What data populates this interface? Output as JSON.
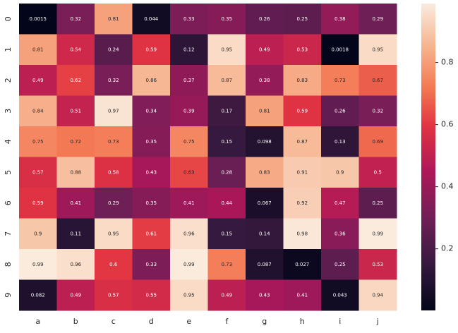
{
  "chart_data": {
    "type": "heatmap",
    "colormap": "rocket",
    "x_categories": [
      "a",
      "b",
      "c",
      "d",
      "e",
      "f",
      "g",
      "h",
      "i",
      "j"
    ],
    "y_categories": [
      "0",
      "1",
      "2",
      "3",
      "4",
      "5",
      "6",
      "7",
      "8",
      "9"
    ],
    "values": [
      [
        0.0015,
        0.32,
        0.81,
        0.044,
        0.33,
        0.35,
        0.26,
        0.25,
        0.38,
        0.29
      ],
      [
        0.81,
        0.54,
        0.24,
        0.59,
        0.12,
        0.95,
        0.49,
        0.53,
        0.0018,
        0.95
      ],
      [
        0.49,
        0.62,
        0.32,
        0.86,
        0.37,
        0.87,
        0.38,
        0.83,
        0.73,
        0.67
      ],
      [
        0.84,
        0.51,
        0.97,
        0.34,
        0.39,
        0.17,
        0.81,
        0.59,
        0.26,
        0.32
      ],
      [
        0.75,
        0.72,
        0.73,
        0.35,
        0.75,
        0.15,
        0.098,
        0.87,
        0.13,
        0.69
      ],
      [
        0.57,
        0.88,
        0.58,
        0.43,
        0.63,
        0.28,
        0.83,
        0.91,
        0.9,
        0.5
      ],
      [
        0.59,
        0.41,
        0.29,
        0.35,
        0.41,
        0.44,
        0.067,
        0.92,
        0.47,
        0.25
      ],
      [
        0.9,
        0.11,
        0.95,
        0.61,
        0.96,
        0.15,
        0.14,
        0.98,
        0.36,
        0.99
      ],
      [
        0.99,
        0.96,
        0.6,
        0.33,
        0.99,
        0.73,
        0.087,
        0.027,
        0.25,
        0.53
      ],
      [
        0.082,
        0.49,
        0.57,
        0.55,
        0.95,
        0.49,
        0.43,
        0.41,
        0.043,
        0.94
      ]
    ],
    "zlim": [
      0.0015,
      0.99
    ],
    "zticks": [
      0.2,
      0.4,
      0.6,
      0.8
    ]
  }
}
